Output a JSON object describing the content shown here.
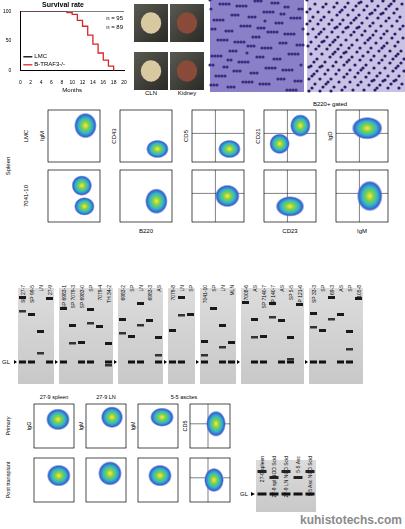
{
  "chart_data": {
    "type": "line",
    "title": "Survival rate",
    "x_label": "Months",
    "xlim": [
      0,
      20
    ],
    "xticks": [
      0,
      2,
      4,
      6,
      8,
      10,
      12,
      14,
      16,
      18,
      20
    ],
    "ylim": [
      0,
      100
    ],
    "yticks": [
      0,
      50,
      100
    ],
    "line_style": "stepped",
    "legend": "bottom-left",
    "annotations": [
      "n = 95",
      "n = 89"
    ],
    "series": [
      {
        "name": "LMC",
        "color": "#000000",
        "x": [
          0,
          20
        ],
        "values": [
          100,
          100
        ]
      },
      {
        "name": "B-TRAF3-/-",
        "color": "#d62728",
        "x": [
          0,
          9,
          10,
          11,
          12,
          13,
          14,
          15,
          16,
          17,
          18
        ],
        "values": [
          100,
          98,
          95,
          85,
          75,
          60,
          45,
          30,
          18,
          8,
          0
        ]
      }
    ]
  },
  "photos": {
    "labels": [
      "CLN",
      "Kidney"
    ]
  },
  "flow": {
    "side_label": "Spleen",
    "rows": [
      "LMC",
      "7041-10"
    ],
    "y_labels": [
      "IgM",
      "CD43",
      "CD5",
      "CD21",
      "IgD"
    ],
    "x_labels": [
      "B220",
      "CD23",
      "IgM"
    ],
    "gate_label": "B220+ gated"
  },
  "blots": {
    "band_label": "GL",
    "gels": [
      [
        "SP 27-7",
        "SP 99-5",
        "LN",
        "27-9"
      ],
      [
        "SP 6983-1",
        "SP 7079-3",
        "SP 6983-0",
        "SP",
        "7079-4",
        "TH 34-2"
      ],
      [
        "6983-2",
        "SP",
        "LN",
        "6983-3",
        "AS"
      ],
      [
        "7079-8",
        "LN",
        "SP"
      ],
      [
        "7041-10",
        "SP",
        "LN",
        "MLN"
      ],
      [
        "7008-6",
        "AS",
        "SP 7140-7",
        "SP 140-7",
        "AS",
        "SP 5-5",
        "SP 121-6"
      ],
      [
        "SP 33-3",
        "SP",
        "69-3",
        "AS",
        "SP",
        "105-8"
      ]
    ]
  },
  "transplant": {
    "titles": [
      "27-9 spleen",
      "27-9 LN",
      "5-5 ascites"
    ],
    "rows": [
      "Primary",
      "Post transplant"
    ],
    "y_labels": [
      "IgG",
      "IgM",
      "IgM",
      "CD5"
    ],
    "blot": {
      "band_label": "GL",
      "lanes": [
        "27-9 spleen",
        "27-9 spl NOD Scid",
        "27-9 LN NOD Scid",
        "5-5 Asc",
        "5-5 Asc NOD Scid"
      ]
    }
  },
  "watermark": "kuhistotechs.com"
}
